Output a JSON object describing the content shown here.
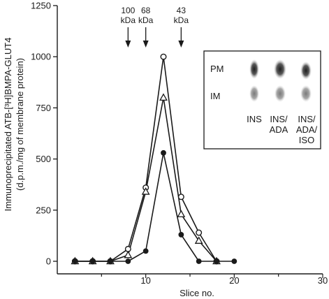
{
  "chart_data": {
    "type": "line",
    "xlabel": "Slice no.",
    "ylabel_line1": "Immunoprecipitated ATB-[³H]BMPA-GLUT4",
    "ylabel_line2": "(d.p.m./mg of membrane protein)",
    "xlim": [
      0,
      30
    ],
    "ylim": [
      0,
      1250
    ],
    "x_ticks": [
      10,
      20,
      30
    ],
    "x_tick_labels": [
      "10",
      "20",
      "30"
    ],
    "y_ticks": [
      0,
      250,
      500,
      750,
      1000,
      1250
    ],
    "y_tick_labels": [
      "0",
      "250",
      "500",
      "750",
      "1000",
      "1250"
    ],
    "grid": false,
    "series": [
      {
        "marker": "open-circle",
        "x": [
          2,
          4,
          6,
          8,
          10,
          12,
          14,
          16,
          18
        ],
        "y": [
          0,
          0,
          0,
          60,
          360,
          1000,
          315,
          140,
          0
        ]
      },
      {
        "marker": "open-triangle",
        "x": [
          2,
          4,
          6,
          8,
          10,
          12,
          14,
          16,
          18
        ],
        "y": [
          0,
          0,
          0,
          30,
          340,
          800,
          230,
          100,
          0
        ]
      },
      {
        "marker": "filled-circle",
        "x": [
          2,
          4,
          6,
          8,
          10,
          12,
          14,
          16,
          18,
          20
        ],
        "y": [
          0,
          0,
          0,
          0,
          50,
          530,
          130,
          0,
          0,
          0
        ]
      }
    ],
    "mw_markers": [
      {
        "x": 8,
        "line1": "100",
        "line2": "kDa"
      },
      {
        "x": 10,
        "line1": "68",
        "line2": "kDa"
      },
      {
        "x": 14,
        "line1": "43",
        "line2": "kDa"
      }
    ],
    "inset": {
      "row_labels": [
        "PM",
        "IM"
      ],
      "lanes": [
        {
          "lines": [
            "INS"
          ]
        },
        {
          "lines": [
            "INS/",
            "ADA"
          ]
        },
        {
          "lines": [
            "INS/",
            "ADA/",
            "ISO"
          ]
        }
      ]
    }
  }
}
